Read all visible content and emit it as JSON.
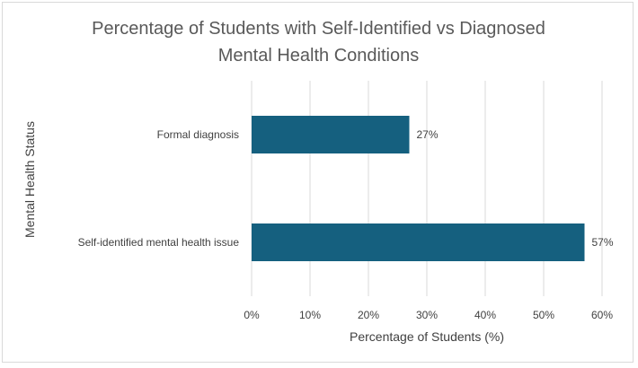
{
  "chart_data": {
    "type": "bar",
    "orientation": "horizontal",
    "title_lines": [
      "Percentage of Students with Self-Identified vs Diagnosed",
      "Mental Health Conditions"
    ],
    "xlabel": "Percentage of Students (%)",
    "ylabel": "Mental Health Status",
    "categories": [
      "Formal diagnosis",
      "Self-identified mental health issue"
    ],
    "values": [
      27,
      57
    ],
    "data_labels": [
      "27%",
      "57%"
    ],
    "xlim": [
      0,
      60
    ],
    "x_ticks": [
      0,
      10,
      20,
      30,
      40,
      50,
      60
    ],
    "x_tick_labels": [
      "0%",
      "10%",
      "20%",
      "30%",
      "40%",
      "50%",
      "60%"
    ],
    "grid": "vertical",
    "legend": "none",
    "bar_color": "#15607f",
    "grid_color": "#d9d9d9"
  }
}
